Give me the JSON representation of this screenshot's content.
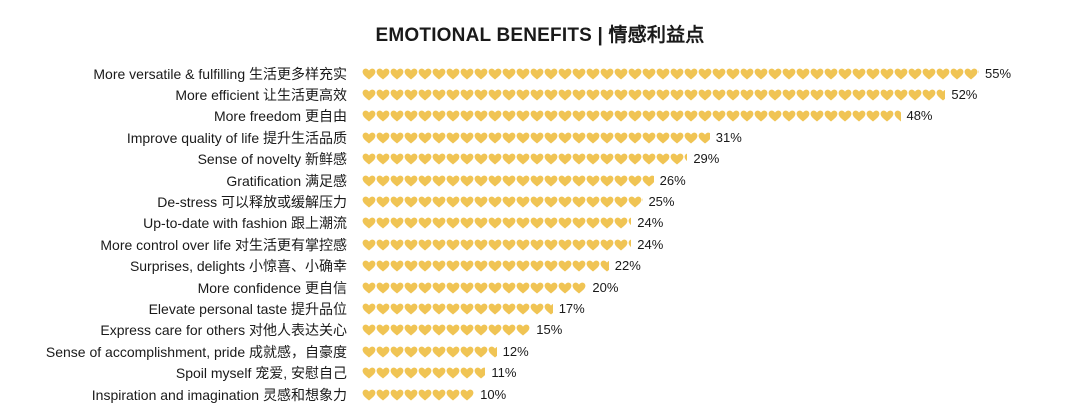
{
  "chart_data": {
    "type": "bar",
    "orientation": "horizontal",
    "title": "EMOTIONAL BENEFITS | 情感利益点",
    "categories": [
      "More versatile & fulfilling 生活更多样充实",
      "More efficient 让生活更高效",
      "More freedom 更自由",
      "Improve quality of life 提升生活品质",
      "Sense of novelty 新鲜感",
      "Gratification 满足感",
      "De-stress 可以释放或缓解压力",
      "Up-to-date with fashion 跟上潮流",
      "More control over life 对生活更有掌控感",
      "Surprises, delights 小惊喜、小确幸",
      "More confidence 更自信",
      "Elevate personal taste 提升品位",
      "Express care for others 对他人表达关心",
      "Sense of accomplishment, pride 成就感，自豪度",
      "Spoil myself 宠爱, 安慰自己",
      "Inspiration and imagination 灵感和想象力"
    ],
    "values": [
      55,
      52,
      48,
      31,
      29,
      26,
      25,
      24,
      24,
      22,
      20,
      17,
      15,
      12,
      11,
      10
    ],
    "value_labels": [
      "55%",
      "52%",
      "48%",
      "31%",
      "29%",
      "26%",
      "25%",
      "24%",
      "24%",
      "22%",
      "20%",
      "17%",
      "15%",
      "12%",
      "11%",
      "10%"
    ],
    "bar_color": "#F0C454",
    "bar_marker": "heart-icon",
    "grid": false,
    "legend": "none"
  }
}
